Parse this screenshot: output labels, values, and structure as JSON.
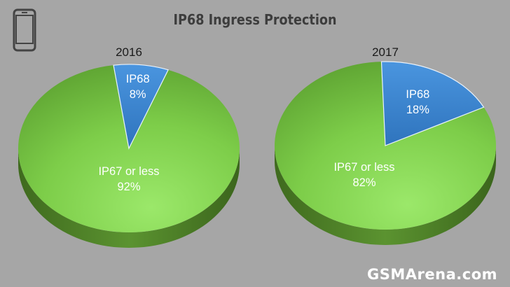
{
  "title": "IP68 Ingress Protection",
  "watermark": "GSMArena.com",
  "icons": {
    "device": "smartphone-icon"
  },
  "colors": {
    "ip68": "#3d86d2",
    "ip67": "#7bd047",
    "background": "#a6a6a6"
  },
  "chart_data": [
    {
      "type": "pie",
      "title": "2016",
      "labels": [
        "IP68",
        "IP67 or less"
      ],
      "values": [
        8,
        92
      ],
      "value_labels": [
        "8%",
        "92%"
      ],
      "colors": [
        "#3d86d2",
        "#7bd047"
      ]
    },
    {
      "type": "pie",
      "title": "2017",
      "labels": [
        "IP68",
        "IP67 or less"
      ],
      "values": [
        18,
        82
      ],
      "value_labels": [
        "18%",
        "82%"
      ],
      "colors": [
        "#3d86d2",
        "#7bd047"
      ]
    }
  ]
}
